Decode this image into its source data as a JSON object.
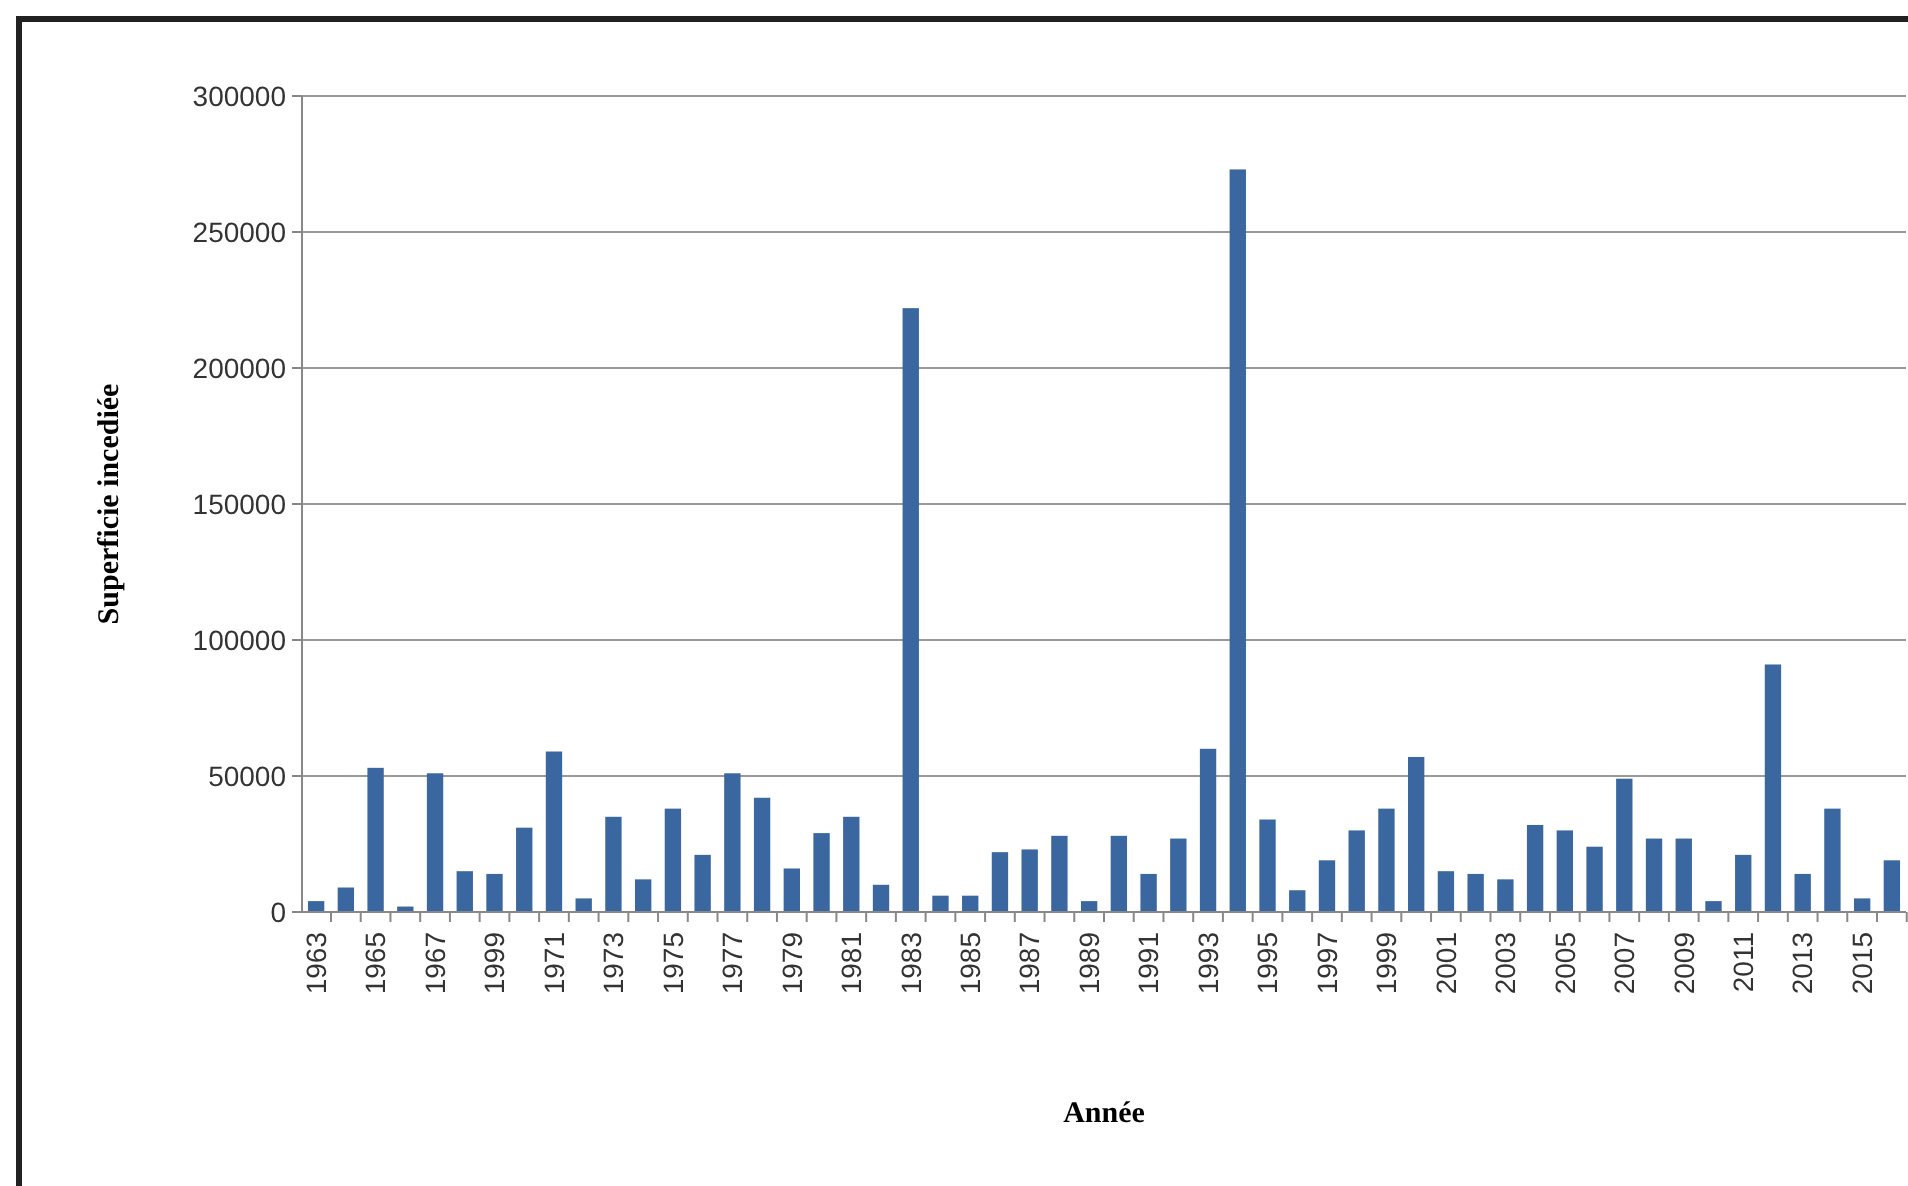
{
  "chart_data": {
    "type": "bar",
    "xlabel": "Année",
    "ylabel": "Superficie incediée",
    "categories": [
      "1963",
      null,
      "1965",
      null,
      "1967",
      null,
      "1999",
      null,
      "1971",
      null,
      "1973",
      null,
      "1975",
      null,
      "1977",
      null,
      "1979",
      null,
      "1981",
      null,
      "1983",
      null,
      "1985",
      null,
      "1987",
      null,
      "1989",
      null,
      "1991",
      null,
      "1993",
      null,
      "1995",
      null,
      "1997",
      null,
      "1999",
      null,
      "2001",
      null,
      "2003",
      null,
      "2005",
      null,
      "2007",
      null,
      "2009",
      null,
      "2011",
      null,
      "2013",
      null,
      "2015",
      null
    ],
    "values": [
      4000,
      9000,
      53000,
      2000,
      51000,
      15000,
      14000,
      31000,
      59000,
      5000,
      35000,
      12000,
      38000,
      21000,
      51000,
      42000,
      16000,
      29000,
      35000,
      10000,
      222000,
      6000,
      6000,
      22000,
      23000,
      28000,
      4000,
      28000,
      14000,
      27000,
      60000,
      273000,
      34000,
      8000,
      19000,
      30000,
      38000,
      57000,
      15000,
      14000,
      12000,
      32000,
      30000,
      24000,
      49000,
      27000,
      27000,
      4000,
      21000,
      91000,
      14000,
      38000,
      5000,
      19000
    ],
    "color": "#3a679f",
    "ylim": [
      0,
      300000
    ],
    "yticks": [
      0,
      50000,
      100000,
      150000,
      200000,
      250000,
      300000
    ],
    "grid": "y"
  }
}
